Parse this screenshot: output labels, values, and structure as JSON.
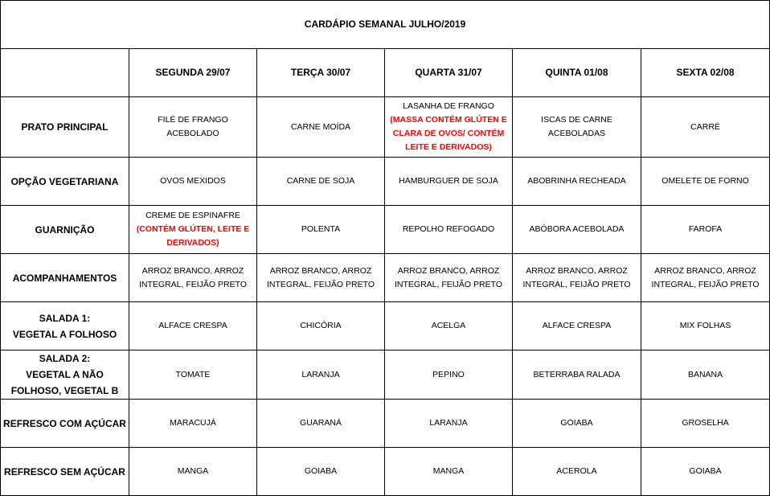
{
  "title": "CARDÁPIO SEMANAL JULHO/2019",
  "days": [
    "SEGUNDA 29/07",
    "TERÇA 30/07",
    "QUARTA 31/07",
    "QUINTA 01/08",
    "SEXTA 02/08"
  ],
  "rows": [
    {
      "label": "PRATO PRINCIPAL",
      "cells": [
        {
          "text": "FILÉ DE FRANGO ACEBOLADO",
          "allergen": ""
        },
        {
          "text": "CARNE MOÍDA",
          "allergen": ""
        },
        {
          "text": "LASANHA DE FRANGO",
          "allergen": "(MASSA CONTÉM GLÚTEN E\nCLARA DE OVOS/ CONTÉM\nLEITE E DERIVADOS)"
        },
        {
          "text": "ISCAS DE CARNE\nACEBOLADAS",
          "allergen": ""
        },
        {
          "text": "CARRÉ",
          "allergen": ""
        }
      ]
    },
    {
      "label": "OPÇÃO VEGETARIANA",
      "cells": [
        {
          "text": "OVOS MEXIDOS",
          "allergen": ""
        },
        {
          "text": "CARNE DE SOJA",
          "allergen": ""
        },
        {
          "text": "HAMBURGUER DE SOJA",
          "allergen": ""
        },
        {
          "text": "ABOBRINHA RECHEADA",
          "allergen": ""
        },
        {
          "text": "OMELETE DE FORNO",
          "allergen": ""
        }
      ]
    },
    {
      "label": "GUARNIÇÃO",
      "cells": [
        {
          "text": "CREME DE ESPINAFRE",
          "allergen": "(CONTÉM GLÚTEN, LEITE E\nDERIVADOS)"
        },
        {
          "text": "POLENTA",
          "allergen": ""
        },
        {
          "text": "REPOLHO REFOGADO",
          "allergen": ""
        },
        {
          "text": "ABÓBORA ACEBOLADA",
          "allergen": ""
        },
        {
          "text": "FAROFA",
          "allergen": ""
        }
      ]
    },
    {
      "label": "ACOMPANHAMENTOS",
      "cells": [
        {
          "text": "ARROZ BRANCO, ARROZ\nINTEGRAL, FEIJÃO PRETO",
          "allergen": ""
        },
        {
          "text": "ARROZ BRANCO, ARROZ\nINTEGRAL, FEIJÃO PRETO",
          "allergen": ""
        },
        {
          "text": "ARROZ BRANCO, ARROZ\nINTEGRAL, FEIJÃO PRETO",
          "allergen": ""
        },
        {
          "text": "ARROZ BRANCO, ARROZ\nINTEGRAL, FEIJÃO PRETO",
          "allergen": ""
        },
        {
          "text": "ARROZ BRANCO, ARROZ\nINTEGRAL, FEIJÃO PRETO",
          "allergen": ""
        }
      ]
    },
    {
      "label": "SALADA 1:\nVEGETAL A FOLHOSO",
      "cells": [
        {
          "text": "ALFACE CRESPA",
          "allergen": ""
        },
        {
          "text": "CHICÓRIA",
          "allergen": ""
        },
        {
          "text": "ACELGA",
          "allergen": ""
        },
        {
          "text": "ALFACE CRESPA",
          "allergen": ""
        },
        {
          "text": "MIX FOLHAS",
          "allergen": ""
        }
      ]
    },
    {
      "label": "SALADA 2:\nVEGETAL A NÃO\nFOLHOSO, VEGETAL B",
      "cells": [
        {
          "text": "TOMATE",
          "allergen": ""
        },
        {
          "text": "LARANJA",
          "allergen": ""
        },
        {
          "text": "PEPINO",
          "allergen": ""
        },
        {
          "text": "BETERRABA RALADA",
          "allergen": ""
        },
        {
          "text": "BANANA",
          "allergen": ""
        }
      ]
    },
    {
      "label": "REFRESCO COM AÇÚCAR",
      "cells": [
        {
          "text": "MARACUJÁ",
          "allergen": ""
        },
        {
          "text": "GUARANÁ",
          "allergen": ""
        },
        {
          "text": "LARANJA",
          "allergen": ""
        },
        {
          "text": "GOIABA",
          "allergen": ""
        },
        {
          "text": "GROSELHA",
          "allergen": ""
        }
      ]
    },
    {
      "label": "REFRESCO SEM AÇÚCAR",
      "cells": [
        {
          "text": "MANGA",
          "allergen": ""
        },
        {
          "text": "GOIABA",
          "allergen": ""
        },
        {
          "text": "MANGA",
          "allergen": ""
        },
        {
          "text": "ACEROLA",
          "allergen": ""
        },
        {
          "text": "GOIABA",
          "allergen": ""
        }
      ]
    }
  ],
  "colors": {
    "allergen": "#ff0000",
    "border": "#000000"
  }
}
